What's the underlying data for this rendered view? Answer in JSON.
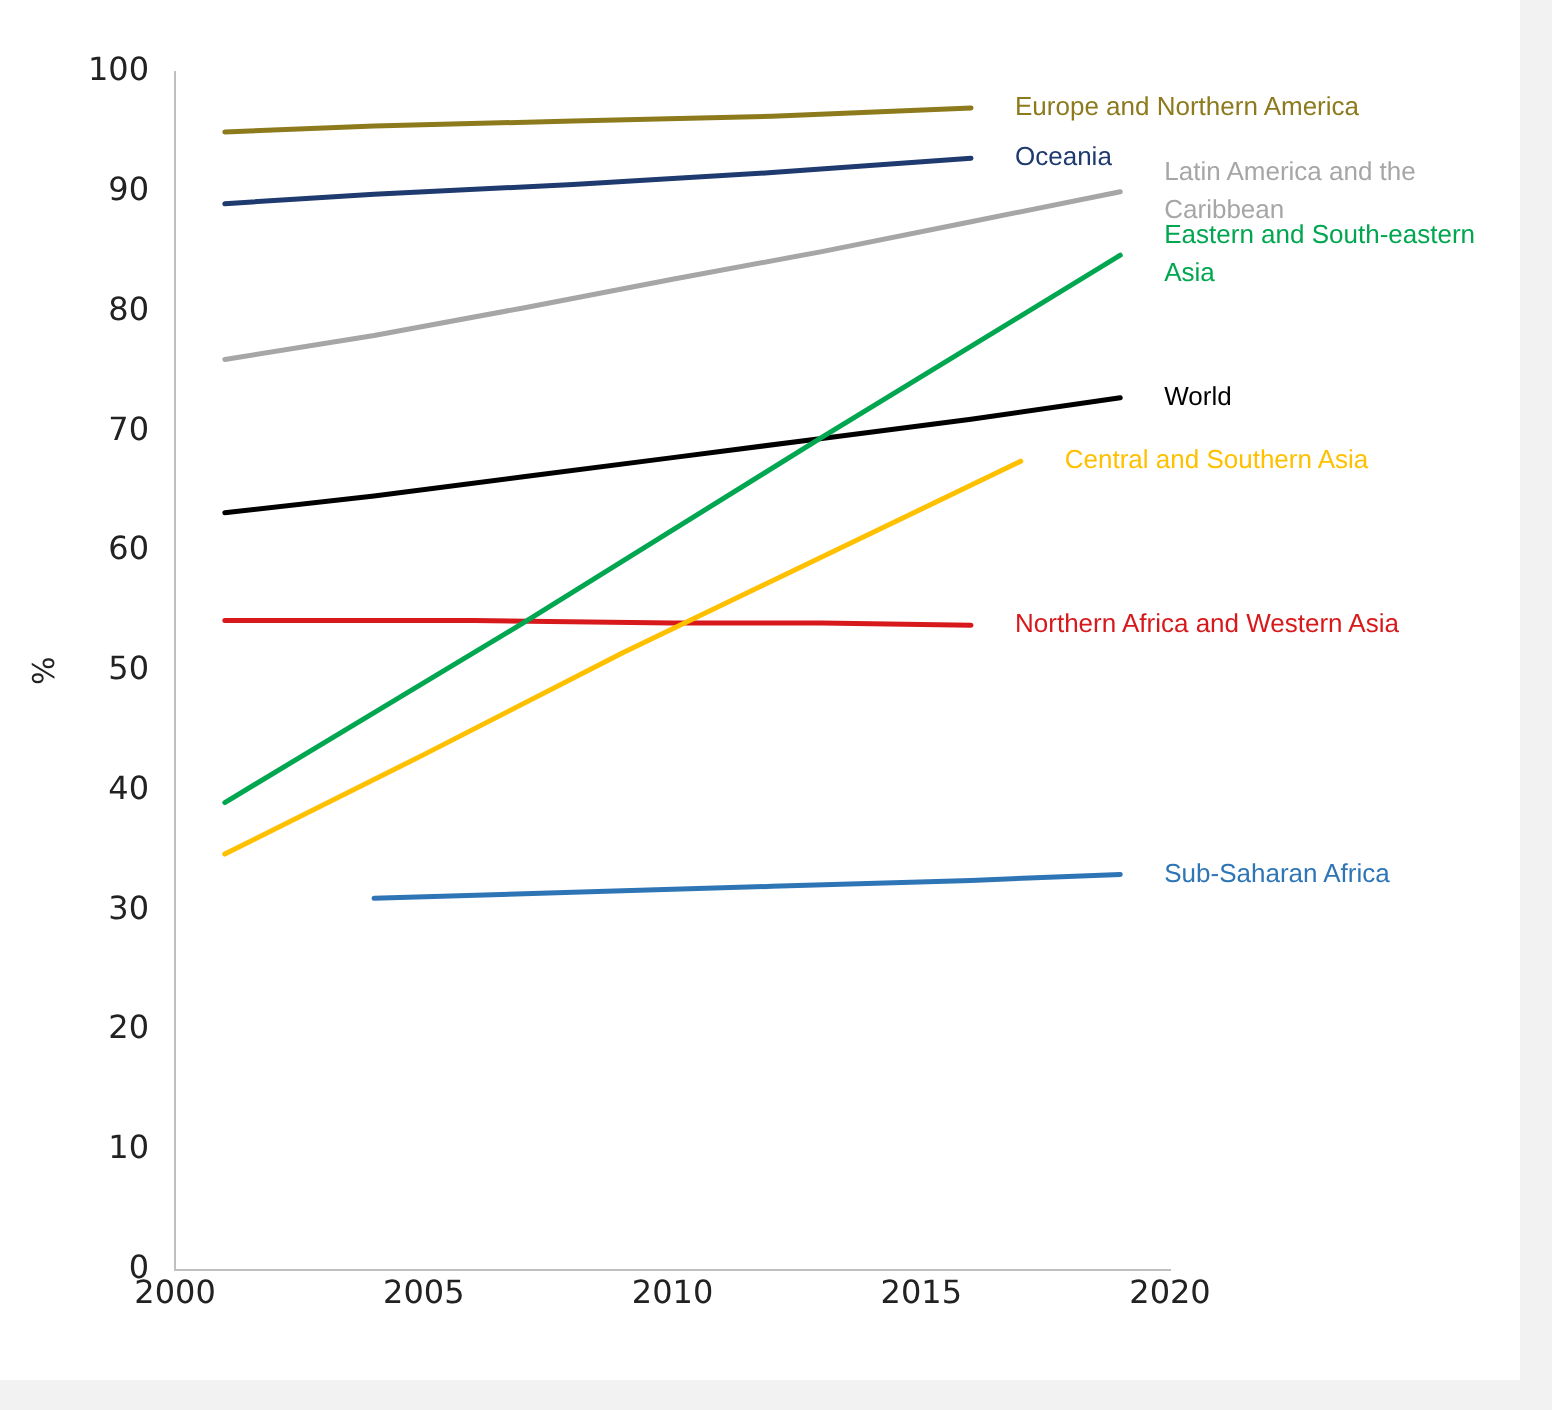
{
  "chart_data": {
    "type": "line",
    "ylabel": "%",
    "xlim": [
      2000,
      2020
    ],
    "xticks": [
      2000,
      2005,
      2010,
      2015,
      2020
    ],
    "ylim": [
      0,
      100
    ],
    "yticks": [
      0,
      10,
      20,
      30,
      40,
      50,
      60,
      70,
      80,
      90,
      100
    ],
    "grid": false,
    "legend": false,
    "marker": "none",
    "line_style": "solid",
    "series": [
      {
        "name": "Europe and Northern America",
        "color": "#8c7a1c",
        "x": [
          2001,
          2004,
          2008,
          2012,
          2016
        ],
        "values": [
          95,
          95.5,
          95.9,
          96.3,
          97
        ]
      },
      {
        "name": "Oceania",
        "color": "#1f3a6e",
        "x": [
          2001,
          2004,
          2008,
          2012,
          2016
        ],
        "values": [
          89,
          89.8,
          90.6,
          91.6,
          92.8
        ]
      },
      {
        "name": "Latin America and the Caribbean",
        "color": "#a6a6a6",
        "x": [
          2001,
          2004,
          2007,
          2010,
          2013,
          2016,
          2019
        ],
        "values": [
          76,
          78,
          80.3,
          82.7,
          85,
          87.5,
          90
        ]
      },
      {
        "name": "Eastern and South-eastern Asia",
        "color": "#00a650",
        "x": [
          2001,
          2007,
          2013,
          2019
        ],
        "values": [
          39,
          54,
          69.5,
          84.7
        ]
      },
      {
        "name": "World",
        "color": "#000000",
        "x": [
          2001,
          2004,
          2007,
          2010,
          2013,
          2016,
          2019
        ],
        "values": [
          63.2,
          64.6,
          66.2,
          67.8,
          69.4,
          71,
          72.8
        ]
      },
      {
        "name": "Central and Southern Asia",
        "color": "#ffc000",
        "x": [
          2001,
          2005,
          2009,
          2013,
          2017
        ],
        "values": [
          34.7,
          43,
          51.5,
          59.5,
          67.5
        ]
      },
      {
        "name": "Northern Africa and Western Asia",
        "color": "#d7191c",
        "x": [
          2001,
          2006,
          2010,
          2013,
          2016
        ],
        "values": [
          54.2,
          54.2,
          54,
          54,
          53.8
        ]
      },
      {
        "name": "Sub-Saharan Africa",
        "color": "#2e75b6",
        "x": [
          2004,
          2008,
          2012,
          2016,
          2019
        ],
        "values": [
          31,
          31.5,
          32,
          32.5,
          33
        ]
      }
    ]
  }
}
